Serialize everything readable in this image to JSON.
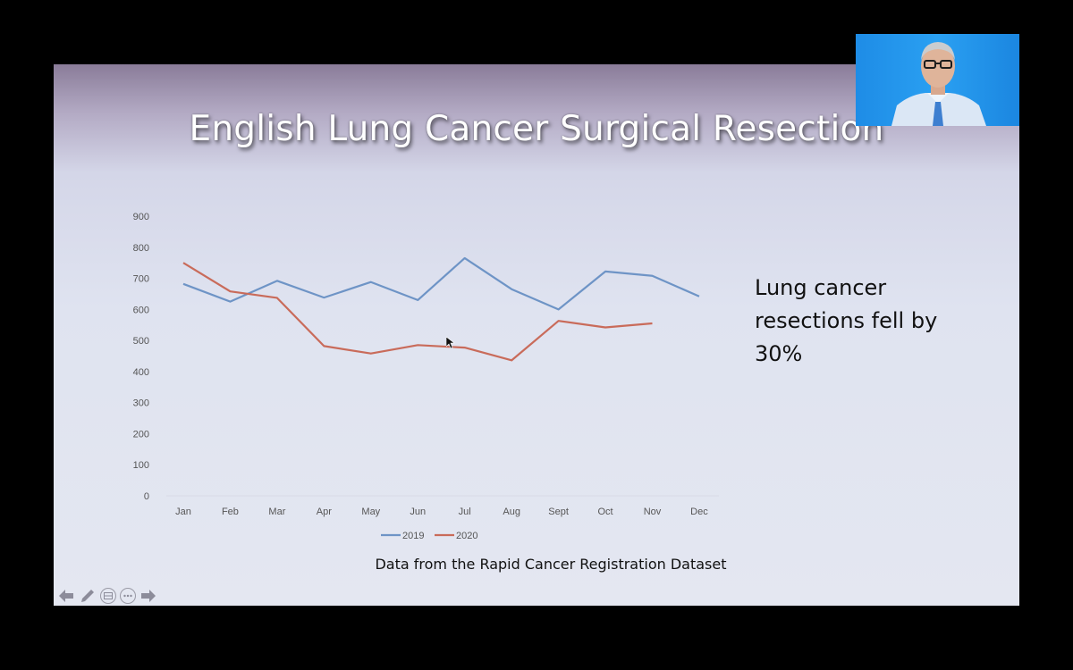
{
  "slide": {
    "title": "English Lung Cancer Surgical Resection",
    "callout": "Lung cancer resections fell by 30%",
    "source_note": "Data from the Rapid Cancer Registration Dataset"
  },
  "controls": [
    {
      "name": "previous-arrow-icon",
      "glyph": "🡐"
    },
    {
      "name": "pen-icon",
      "glyph": "✎"
    },
    {
      "name": "slides-grid-icon",
      "glyph": "▤"
    },
    {
      "name": "more-options-icon",
      "glyph": "•••"
    },
    {
      "name": "next-arrow-icon",
      "glyph": "🡒"
    }
  ],
  "webcam": {
    "description_icon": "presenter-webcam"
  },
  "chart_data": {
    "type": "line",
    "categories": [
      "Jan",
      "Feb",
      "Mar",
      "Apr",
      "May",
      "Jun",
      "Jul",
      "Aug",
      "Sept",
      "Oct",
      "Nov",
      "Dec"
    ],
    "series": [
      {
        "name": "2019",
        "color": "#6e94c6",
        "values": [
          682,
          625,
          692,
          638,
          688,
          630,
          765,
          665,
          600,
          722,
          708,
          642
        ]
      },
      {
        "name": "2020",
        "color": "#c96b5a",
        "values": [
          750,
          658,
          637,
          482,
          458,
          485,
          477,
          436,
          563,
          542,
          555,
          null
        ]
      }
    ],
    "yticks": [
      0,
      100,
      200,
      300,
      400,
      500,
      600,
      700,
      800,
      900
    ],
    "ylim": [
      0,
      900
    ],
    "grid": false,
    "legend_position": "bottom"
  }
}
